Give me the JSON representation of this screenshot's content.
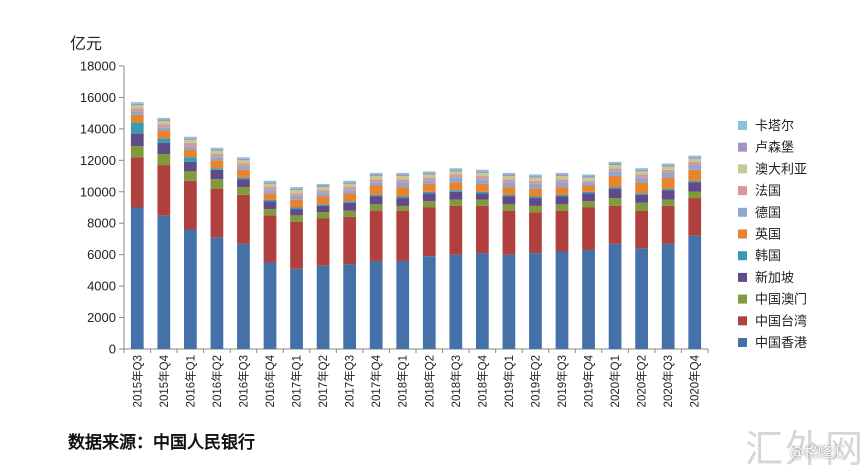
{
  "unit_label": "亿元",
  "source": "数据来源：中国人民银行",
  "watermark": {
    "main": "汇外网",
    "sub": "@格隆汇"
  },
  "chart_data": {
    "type": "bar",
    "stacked": true,
    "title": "",
    "xlabel": "",
    "ylabel": "亿元",
    "ylim": [
      0,
      18000
    ],
    "yticks": [
      0,
      2000,
      4000,
      6000,
      8000,
      10000,
      12000,
      14000,
      16000,
      18000
    ],
    "grid": false,
    "legend_position": "right",
    "categories": [
      "2015年Q3",
      "2015年Q4",
      "2016年Q1",
      "2016年Q2",
      "2016年Q3",
      "2016年Q4",
      "2017年Q1",
      "2017年Q2",
      "2017年Q3",
      "2017年Q4",
      "2018年Q1",
      "2018年Q2",
      "2018年Q3",
      "2018年Q4",
      "2019年Q1",
      "2019年Q2",
      "2019年Q3",
      "2019年Q4",
      "2020年Q1",
      "2020年Q2",
      "2020年Q3",
      "2020年Q4"
    ],
    "series": [
      {
        "name": "中国香港",
        "color": "#4472A8",
        "values": [
          9000,
          8500,
          7600,
          7100,
          6700,
          5500,
          5100,
          5300,
          5400,
          5600,
          5600,
          5900,
          6000,
          6100,
          6000,
          6100,
          6200,
          6300,
          6700,
          6400,
          6700,
          7200
        ]
      },
      {
        "name": "中国台湾",
        "color": "#B0413E",
        "values": [
          3200,
          3200,
          3100,
          3100,
          3100,
          3000,
          3000,
          3000,
          3000,
          3200,
          3200,
          3100,
          3100,
          3000,
          2800,
          2600,
          2600,
          2700,
          2400,
          2400,
          2400,
          2400
        ]
      },
      {
        "name": "中国澳门",
        "color": "#7F9B3C",
        "values": [
          700,
          700,
          600,
          600,
          500,
          400,
          400,
          400,
          400,
          400,
          300,
          400,
          400,
          400,
          400,
          400,
          400,
          400,
          500,
          500,
          400,
          400
        ]
      },
      {
        "name": "新加坡",
        "color": "#614A8A",
        "values": [
          800,
          700,
          600,
          600,
          500,
          500,
          400,
          400,
          500,
          500,
          500,
          500,
          500,
          400,
          500,
          500,
          500,
          500,
          600,
          500,
          600,
          600
        ]
      },
      {
        "name": "韩国",
        "color": "#3A9AB0",
        "values": [
          700,
          300,
          300,
          100,
          100,
          100,
          100,
          100,
          100,
          100,
          100,
          100,
          100,
          100,
          100,
          100,
          100,
          100,
          100,
          100,
          100,
          100
        ]
      },
      {
        "name": "英国",
        "color": "#E6842F",
        "values": [
          500,
          500,
          500,
          500,
          500,
          400,
          500,
          500,
          500,
          600,
          600,
          500,
          500,
          500,
          500,
          500,
          500,
          400,
          700,
          700,
          700,
          700
        ]
      },
      {
        "name": "德国",
        "color": "#8DA6D4",
        "values": [
          200,
          200,
          200,
          200,
          200,
          200,
          200,
          200,
          200,
          200,
          300,
          200,
          300,
          300,
          300,
          300,
          300,
          200,
          300,
          300,
          300,
          300
        ]
      },
      {
        "name": "法国",
        "color": "#D79897",
        "values": [
          200,
          200,
          200,
          200,
          200,
          200,
          200,
          200,
          200,
          200,
          200,
          200,
          200,
          200,
          200,
          200,
          200,
          100,
          200,
          200,
          200,
          200
        ]
      },
      {
        "name": "澳大利亚",
        "color": "#BCCD96",
        "values": [
          200,
          200,
          200,
          200,
          200,
          200,
          200,
          200,
          200,
          200,
          200,
          200,
          200,
          200,
          200,
          200,
          200,
          200,
          200,
          200,
          200,
          200
        ]
      },
      {
        "name": "卢森堡",
        "color": "#A492BF",
        "values": [
          100,
          100,
          100,
          100,
          100,
          100,
          100,
          100,
          100,
          100,
          100,
          100,
          100,
          100,
          100,
          100,
          100,
          100,
          100,
          100,
          100,
          100
        ]
      },
      {
        "name": "卡塔尔",
        "color": "#8CC2D6",
        "values": [
          100,
          100,
          100,
          100,
          100,
          100,
          100,
          100,
          100,
          100,
          100,
          100,
          100,
          100,
          100,
          100,
          100,
          100,
          100,
          100,
          100,
          100
        ]
      }
    ]
  }
}
